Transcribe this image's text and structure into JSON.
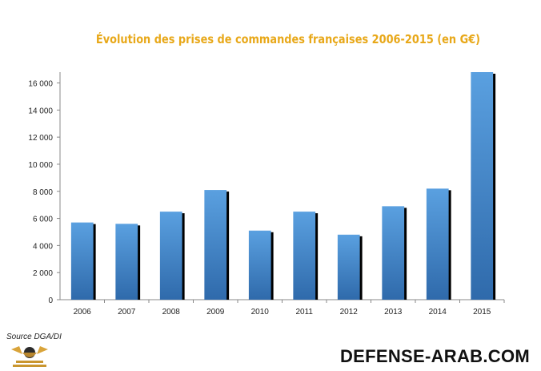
{
  "chart_data": {
    "type": "bar",
    "title": "Évolution des prises de commandes françaises 2006-2015 (en G€)",
    "categories": [
      "2006",
      "2007",
      "2008",
      "2009",
      "2010",
      "2011",
      "2012",
      "2013",
      "2014",
      "2015"
    ],
    "values": [
      5700,
      5600,
      6500,
      8100,
      5100,
      6500,
      4800,
      6900,
      8200,
      16900
    ],
    "ylim": [
      0,
      16800
    ],
    "yticks": [
      0,
      2000,
      4000,
      6000,
      8000,
      10000,
      12000,
      14000,
      16000
    ],
    "ytick_labels": [
      "0",
      "2 000",
      "4 000",
      "6 000",
      "8 000",
      "10 000",
      "12 000",
      "14 000",
      "16 000"
    ],
    "xlabel": "",
    "ylabel": "",
    "grid": false,
    "bar_color": "#4a8fd4",
    "bar_shadow_color": "#000000"
  },
  "source": "Source DGA/DI",
  "watermark": "DEFENSE-ARAB.COM",
  "title_color": "#e8a819"
}
